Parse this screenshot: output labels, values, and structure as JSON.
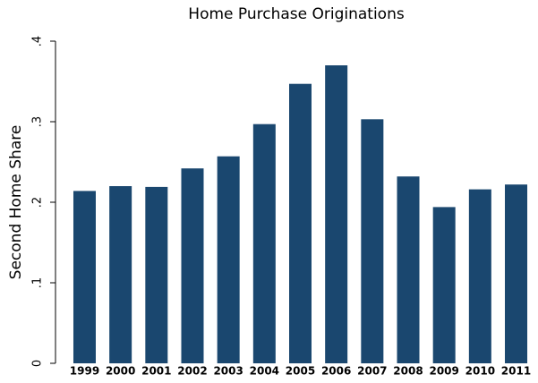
{
  "chart_data": {
    "type": "bar",
    "title": "Home Purchase Originations",
    "y_label": "Second Home Share",
    "categories": [
      "1999",
      "2000",
      "2001",
      "2002",
      "2003",
      "2004",
      "2005",
      "2006",
      "2007",
      "2008",
      "2009",
      "2010",
      "2011"
    ],
    "values": [
      0.214,
      0.22,
      0.219,
      0.242,
      0.257,
      0.297,
      0.347,
      0.37,
      0.303,
      0.232,
      0.194,
      0.216,
      0.222
    ],
    "color": "#1a476f",
    "ylim": [
      0,
      0.4
    ],
    "yticks": [
      0,
      {
        "value": 0.1,
        "label": ".1"
      },
      {
        "value": 0.2,
        "label": ".2"
      },
      {
        "value": 0.3,
        "label": ".3"
      },
      {
        "value": 0.4,
        "label": ".4"
      }
    ],
    "grid": false
  }
}
